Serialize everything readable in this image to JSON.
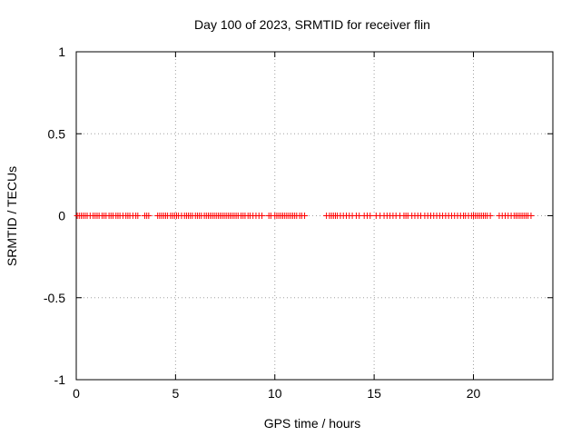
{
  "chart_data": {
    "type": "scatter",
    "title": "Day 100 of 2023, SRMTID for receiver flin",
    "xlabel": "GPS time / hours",
    "ylabel": "SRMTID / TECUs",
    "xlim": [
      0,
      24
    ],
    "ylim": [
      -1,
      1
    ],
    "x_ticks": [
      0,
      5,
      10,
      15,
      20
    ],
    "x_tick_labels": [
      "0",
      "5",
      "10",
      "15",
      "20"
    ],
    "y_ticks": [
      -1,
      -0.5,
      0,
      0.5,
      1
    ],
    "y_tick_labels": [
      "-1",
      "-0.5",
      "0",
      "0.5",
      "1"
    ],
    "grid": true,
    "marker": "plus",
    "series": [
      {
        "name": "SRMTID",
        "color": "#ff0000",
        "x": [
          0.05,
          0.15,
          0.25,
          0.35,
          0.45,
          0.55,
          0.7,
          0.85,
          0.95,
          1.05,
          1.15,
          1.3,
          1.4,
          1.5,
          1.65,
          1.75,
          1.85,
          2.0,
          2.1,
          2.2,
          2.35,
          2.5,
          2.6,
          2.7,
          2.85,
          3.0,
          3.1,
          3.45,
          3.55,
          3.65,
          4.1,
          4.2,
          4.3,
          4.4,
          4.5,
          4.6,
          4.75,
          4.85,
          4.95,
          5.05,
          5.15,
          5.3,
          5.45,
          5.55,
          5.65,
          5.75,
          5.85,
          6.0,
          6.1,
          6.2,
          6.3,
          6.45,
          6.55,
          6.65,
          6.75,
          6.85,
          6.95,
          7.05,
          7.15,
          7.25,
          7.35,
          7.45,
          7.55,
          7.65,
          7.75,
          7.85,
          7.95,
          8.05,
          8.15,
          8.3,
          8.4,
          8.5,
          8.65,
          8.75,
          8.9,
          9.05,
          9.2,
          9.35,
          9.7,
          9.8,
          10.0,
          10.1,
          10.2,
          10.3,
          10.4,
          10.5,
          10.6,
          10.7,
          10.8,
          10.9,
          11.0,
          11.1,
          11.25,
          11.35,
          11.5,
          12.6,
          12.75,
          12.85,
          12.95,
          13.05,
          13.15,
          13.3,
          13.45,
          13.6,
          13.75,
          13.9,
          14.1,
          14.25,
          14.5,
          14.65,
          14.8,
          15.1,
          15.3,
          15.5,
          15.65,
          15.8,
          15.95,
          16.1,
          16.3,
          16.5,
          16.6,
          16.7,
          16.9,
          17.05,
          17.2,
          17.35,
          17.55,
          17.7,
          17.85,
          18.0,
          18.15,
          18.3,
          18.45,
          18.6,
          18.75,
          18.9,
          19.05,
          19.2,
          19.35,
          19.5,
          19.6,
          19.75,
          19.9,
          20.0,
          20.1,
          20.2,
          20.3,
          20.4,
          20.5,
          20.6,
          20.7,
          20.85,
          21.3,
          21.45,
          21.6,
          21.75,
          21.9,
          22.05,
          22.15,
          22.25,
          22.35,
          22.45,
          22.55,
          22.65,
          22.75,
          22.9
        ]
      }
    ],
    "y_constant": 0
  }
}
